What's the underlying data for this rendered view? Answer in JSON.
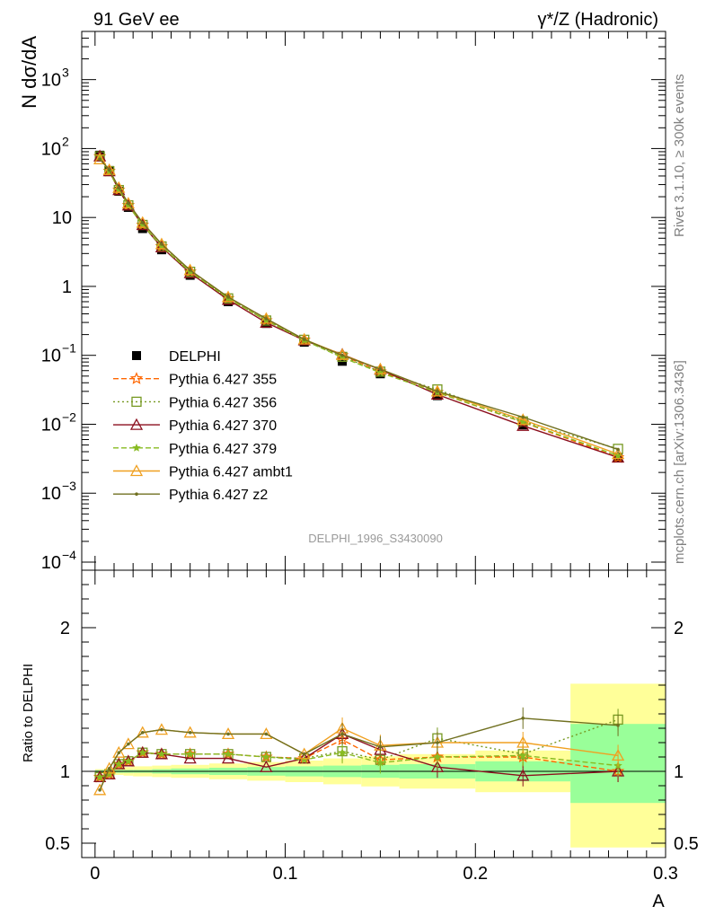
{
  "header": {
    "left": "91 GeV ee",
    "right": "γ*/Z (Hadronic)"
  },
  "side": {
    "rivet": "Rivet 3.1.10, ≥ 300k events",
    "mcplots": "mcplots.cern.ch [arXiv:1306.3436]"
  },
  "watermark": "DELPHI_1996_S3430090",
  "chart_data": [
    {
      "type": "line",
      "panel": "main",
      "ylabel": "N dσ/dA",
      "yscale": "log",
      "ylim": [
        0.0001,
        5000
      ],
      "xlim": [
        -0.007,
        0.3
      ],
      "yticks": [
        {
          "v": 0.0001,
          "label": "10",
          "exp": "−4"
        },
        {
          "v": 0.001,
          "label": "10",
          "exp": "−3"
        },
        {
          "v": 0.01,
          "label": "10",
          "exp": "−2"
        },
        {
          "v": 0.1,
          "label": "10",
          "exp": "−1"
        },
        {
          "v": 1,
          "label": "1",
          "exp": ""
        },
        {
          "v": 10,
          "label": "10",
          "exp": ""
        },
        {
          "v": 100,
          "label": "10",
          "exp": "2"
        },
        {
          "v": 1000,
          "label": "10",
          "exp": "3"
        }
      ],
      "legend_position": "middle-left",
      "x": [
        0.0025,
        0.0075,
        0.0125,
        0.0175,
        0.025,
        0.035,
        0.05,
        0.07,
        0.09,
        0.11,
        0.13,
        0.15,
        0.18,
        0.225,
        0.275
      ],
      "series": [
        {
          "name": "DELPHI",
          "color": "#000000",
          "dash": "",
          "marker": "square-filled",
          "values": [
            80,
            48,
            24,
            14,
            6.9,
            3.4,
            1.45,
            0.6,
            0.29,
            0.155,
            0.082,
            0.054,
            0.026,
            0.0098,
            0.0033
          ]
        },
        {
          "name": "Pythia 6.427 355",
          "color": "#ff6600",
          "dash": "6,3",
          "marker": "star-open",
          "values": [
            77,
            47,
            25,
            15,
            7.8,
            3.8,
            1.63,
            0.67,
            0.32,
            0.168,
            0.1,
            0.058,
            0.029,
            0.0107,
            0.0033
          ]
        },
        {
          "name": "Pythia 6.427 356",
          "color": "#779922",
          "dash": "2,3",
          "marker": "square-open",
          "values": [
            77,
            47,
            25,
            15,
            7.8,
            3.8,
            1.63,
            0.67,
            0.32,
            0.168,
            0.095,
            0.058,
            0.032,
            0.011,
            0.0044
          ]
        },
        {
          "name": "Pythia 6.427 370",
          "color": "#8b0f1e",
          "dash": "",
          "marker": "triangle-open",
          "values": [
            77,
            47,
            25,
            15,
            7.8,
            3.7,
            1.56,
            0.64,
            0.298,
            0.165,
            0.103,
            0.062,
            0.027,
            0.0095,
            0.0033
          ]
        },
        {
          "name": "Pythia 6.427 379",
          "color": "#88bb22",
          "dash": "6,3",
          "marker": "star-filled",
          "values": [
            77,
            47,
            25,
            15,
            7.8,
            3.8,
            1.63,
            0.67,
            0.32,
            0.165,
            0.093,
            0.056,
            0.029,
            0.0108,
            0.0035
          ]
        },
        {
          "name": "Pythia 6.427 ambt1",
          "color": "#f0a020",
          "dash": "",
          "marker": "triangle-open",
          "values": [
            70,
            49,
            27,
            16,
            8.4,
            4.1,
            1.72,
            0.7,
            0.34,
            0.17,
            0.102,
            0.063,
            0.03,
            0.0116,
            0.0037
          ]
        },
        {
          "name": "Pythia 6.427 z2",
          "color": "#707020",
          "dash": "",
          "marker": "dot",
          "values": [
            70,
            49,
            27,
            16,
            8.4,
            4.1,
            1.72,
            0.7,
            0.34,
            0.17,
            0.1,
            0.063,
            0.03,
            0.0127,
            0.0043
          ]
        }
      ]
    },
    {
      "type": "line",
      "panel": "ratio",
      "xlabel": "A",
      "ylabel": "Ratio to DELPHI",
      "ylim": [
        0.4,
        2.4
      ],
      "yticks": [
        {
          "v": 0.5,
          "label": "0.5"
        },
        {
          "v": 1,
          "label": "1"
        },
        {
          "v": 2,
          "label": "2"
        }
      ],
      "xlim": [
        -0.007,
        0.3
      ],
      "xticks": [
        {
          "v": 0,
          "label": "0"
        },
        {
          "v": 0.1,
          "label": "0.1"
        },
        {
          "v": 0.2,
          "label": "0.2"
        },
        {
          "v": 0.3,
          "label": "0.3"
        }
      ],
      "bin_edges": [
        0,
        0.005,
        0.01,
        0.015,
        0.02,
        0.03,
        0.04,
        0.06,
        0.08,
        0.1,
        0.12,
        0.14,
        0.16,
        0.2,
        0.25,
        0.3
      ],
      "uncertainty_bands": [
        {
          "name": "stat",
          "color": "#99ff99",
          "lower": [
            0.992,
            0.99,
            0.99,
            0.99,
            0.99,
            0.985,
            0.98,
            0.975,
            0.97,
            0.965,
            0.96,
            0.955,
            0.95,
            0.93,
            0.78
          ],
          "upper": [
            1.008,
            1.01,
            1.01,
            1.01,
            1.01,
            1.015,
            1.02,
            1.025,
            1.03,
            1.035,
            1.04,
            1.045,
            1.05,
            1.07,
            1.33
          ]
        },
        {
          "name": "total",
          "color": "#ffff99",
          "lower": [
            0.985,
            0.98,
            0.975,
            0.97,
            0.965,
            0.96,
            0.955,
            0.945,
            0.935,
            0.925,
            0.91,
            0.895,
            0.88,
            0.855,
            0.47
          ],
          "upper": [
            1.015,
            1.02,
            1.025,
            1.03,
            1.035,
            1.04,
            1.045,
            1.055,
            1.065,
            1.075,
            1.09,
            1.105,
            1.12,
            1.145,
            1.61
          ]
        }
      ],
      "x": [
        0.0025,
        0.0075,
        0.0125,
        0.0175,
        0.025,
        0.035,
        0.05,
        0.07,
        0.09,
        0.11,
        0.13,
        0.15,
        0.18,
        0.225,
        0.275
      ],
      "series": [
        {
          "name": "Pythia 6.427 355",
          "color": "#ff6600",
          "dash": "6,3",
          "marker": "star-open",
          "values": [
            0.96,
            0.98,
            1.05,
            1.07,
            1.13,
            1.12,
            1.12,
            1.12,
            1.1,
            1.09,
            1.22,
            1.08,
            1.1,
            1.1,
            1.0
          ]
        },
        {
          "name": "Pythia 6.427 356",
          "color": "#779922",
          "dash": "2,3",
          "marker": "square-open",
          "values": [
            0.96,
            0.98,
            1.05,
            1.07,
            1.13,
            1.12,
            1.12,
            1.12,
            1.1,
            1.09,
            1.14,
            1.08,
            1.23,
            1.12,
            1.36
          ]
        },
        {
          "name": "Pythia 6.427 370",
          "color": "#8b0f1e",
          "dash": "",
          "marker": "triangle-open",
          "values": [
            0.96,
            0.98,
            1.05,
            1.07,
            1.13,
            1.12,
            1.09,
            1.09,
            1.03,
            1.09,
            1.26,
            1.15,
            1.03,
            0.97,
            1.0
          ]
        },
        {
          "name": "Pythia 6.427 379",
          "color": "#88bb22",
          "dash": "6,3",
          "marker": "star-filled",
          "values": [
            0.96,
            0.98,
            1.05,
            1.07,
            1.13,
            1.12,
            1.12,
            1.12,
            1.1,
            1.08,
            1.13,
            1.06,
            1.1,
            1.11,
            1.04
          ]
        },
        {
          "name": "Pythia 6.427 ambt1",
          "color": "#f0a020",
          "dash": "",
          "marker": "triangle-open",
          "values": [
            0.87,
            1.02,
            1.13,
            1.19,
            1.27,
            1.29,
            1.27,
            1.26,
            1.26,
            1.12,
            1.3,
            1.18,
            1.2,
            1.2,
            1.11
          ]
        },
        {
          "name": "Pythia 6.427 z2",
          "color": "#707020",
          "dash": "",
          "marker": "dot",
          "values": [
            0.87,
            1.02,
            1.13,
            1.19,
            1.27,
            1.29,
            1.27,
            1.26,
            1.26,
            1.12,
            1.26,
            1.17,
            1.2,
            1.37,
            1.32
          ]
        }
      ]
    }
  ]
}
